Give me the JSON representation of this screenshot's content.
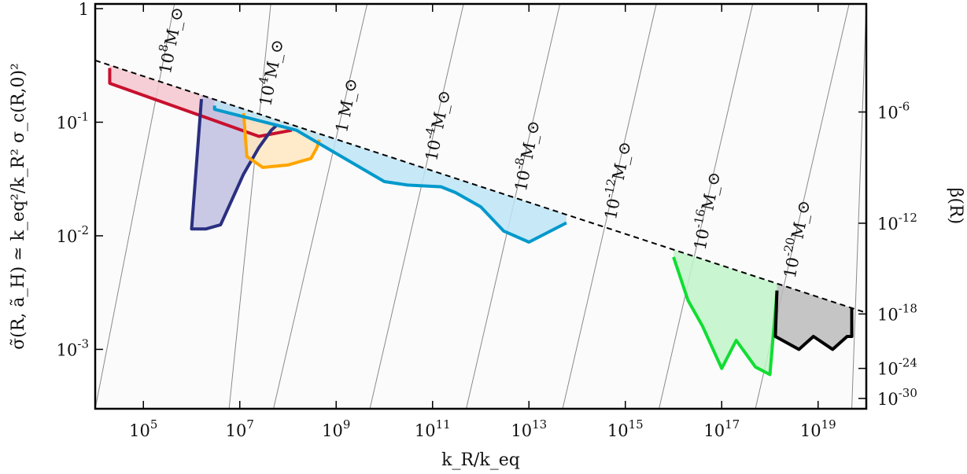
{
  "chart_data": {
    "type": "area",
    "title": "",
    "xlabel": "k_R/k_eq",
    "ylabel": "σ̃(R, ã_H) ≃ k_eq²/k_R² σ_c(R,0)²",
    "ylabel_right": "β(R)",
    "xscale": "log",
    "yscale": "log",
    "xlim": [
      10000,
      1e+20
    ],
    "ylim": [
      0.0003,
      1.1
    ],
    "xticks": [
      {
        "value": 100000.0,
        "label": "10^5"
      },
      {
        "value": 10000000.0,
        "label": "10^7"
      },
      {
        "value": 1000000000.0,
        "label": "10^9"
      },
      {
        "value": 100000000000.0,
        "label": "10^11"
      },
      {
        "value": 10000000000000.0,
        "label": "10^13"
      },
      {
        "value": 1000000000000000.0,
        "label": "10^15"
      },
      {
        "value": 1e+17,
        "label": "10^17"
      },
      {
        "value": 1e+19,
        "label": "10^19"
      }
    ],
    "yticks": [
      {
        "value": 1,
        "label": "1"
      },
      {
        "value": 0.1,
        "label": "10^-1"
      },
      {
        "value": 0.01,
        "label": "10^-2"
      },
      {
        "value": 0.001,
        "label": "10^-3"
      }
    ],
    "right_ticks": [
      {
        "value": 0.123,
        "label": "10^-6"
      },
      {
        "value": 0.0129,
        "label": "10^-12"
      },
      {
        "value": 0.00205,
        "label": "10^-18"
      },
      {
        "value": 0.00068,
        "label": "10^-24"
      },
      {
        "value": 0.00037,
        "label": "10^-30"
      }
    ],
    "boundary_line": {
      "style": "dashed",
      "color": "#000000",
      "x": [
        10000,
        1e+20
      ],
      "y": [
        0.35,
        0.0021
      ]
    },
    "mass_contours": [
      {
        "label": "10^8 M_⊙",
        "x_bottom": 10000,
        "x_top": 440000.0
      },
      {
        "label": "10^4 M_⊙",
        "x_bottom": 6000000.0,
        "x_top": 44000000.0
      },
      {
        "label": "1 M_⊙",
        "x_bottom": 50000000.0,
        "x_top": 4400000000.0
      },
      {
        "label": "10^-4 M_⊙",
        "x_bottom": 5000000000.0,
        "x_top": 440000000000.0
      },
      {
        "label": "10^-8 M_⊙",
        "x_bottom": 500000000000.0,
        "x_top": 44000000000000.0
      },
      {
        "label": "10^-12 M_⊙",
        "x_bottom": 50000000000000.0,
        "x_top": 4400000000000000.0
      },
      {
        "label": "10^-16 M_⊙",
        "x_bottom": 5000000000000000.0,
        "x_top": 4.4e+17
      },
      {
        "label": "10^-20 M_⊙",
        "x_bottom": 5e+17,
        "x_top": 4.4e+19
      },
      {
        "label": "",
        "x_bottom": 5e+19,
        "x_top": 1e+20
      }
    ],
    "series": [
      {
        "color": "#c8102e",
        "fill": "#f4c6cf",
        "x": [
          20000,
          20000,
          25000000.0,
          120000000.0
        ],
        "y": [
          0.3,
          0.22,
          0.075,
          0.085
        ]
      },
      {
        "color": "#2a2f80",
        "fill": "#c0c0e0",
        "x": [
          1600000.0,
          1000000.0,
          2000000.0,
          4000000.0,
          12000000.0,
          25000000.0,
          45000000.0,
          60000000.0
        ],
        "y": [
          0.16,
          0.0115,
          0.0115,
          0.0125,
          0.035,
          0.06,
          0.085,
          0.095
        ]
      },
      {
        "color": "#ffa500",
        "fill": "#ffe8c0",
        "x": [
          12000000.0,
          14000000.0,
          30000000.0,
          100000000.0,
          300000000.0,
          400000000.0,
          450000000.0
        ],
        "y": [
          0.12,
          0.05,
          0.04,
          0.042,
          0.048,
          0.06,
          0.07
        ]
      },
      {
        "color": "#0099cc",
        "fill": "#bde4f4",
        "x": [
          3000000.0,
          3000000.0,
          150000000.0,
          10000000000.0,
          30000000000.0,
          150000000000.0,
          300000000000.0,
          1000000000000.0,
          3000000000000.0,
          10000000000000.0,
          60000000000000.0
        ],
        "y": [
          0.14,
          0.13,
          0.085,
          0.03,
          0.028,
          0.027,
          0.024,
          0.018,
          0.011,
          0.0088,
          0.013
        ]
      },
      {
        "color": "#11dd33",
        "fill": "#c0f4c8",
        "x": [
          1e+16,
          2e+16,
          4e+16,
          1e+17,
          2e+17,
          5e+17,
          1e+18,
          1.4e+18
        ],
        "y": [
          0.0065,
          0.0027,
          0.0016,
          0.00068,
          0.0012,
          0.0007,
          0.0006,
          0.0032
        ]
      },
      {
        "color": "#000000",
        "fill": "#bbbbbb",
        "x": [
          1.4e+18,
          1.3e+18,
          4e+18,
          8e+18,
          2e+19,
          4e+19,
          5e+19,
          5e+19
        ],
        "y": [
          0.0033,
          0.0013,
          0.001,
          0.0013,
          0.001,
          0.0013,
          0.0013,
          0.0023
        ]
      }
    ]
  }
}
